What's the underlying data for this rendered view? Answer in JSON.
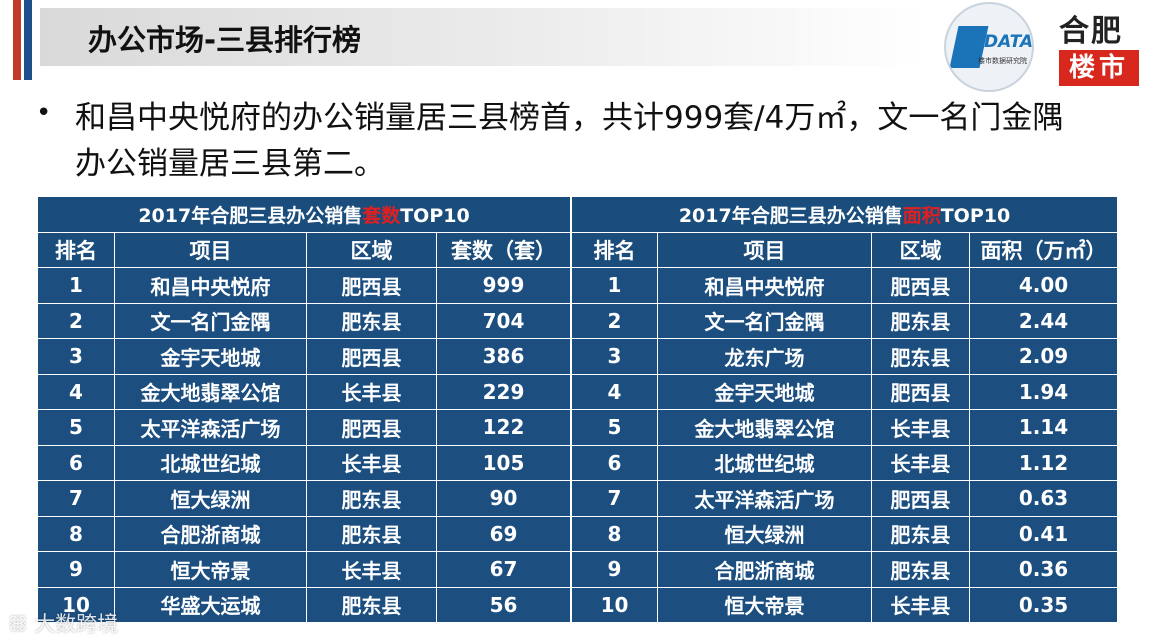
{
  "header": {
    "title": "办公市场-三县排行榜"
  },
  "logos": {
    "data_word": "DATA",
    "data_sub": "楼市数据研究院",
    "hefei_top": "合肥",
    "hefei_bottom": "楼市"
  },
  "summary": {
    "text": "和昌中央悦府的办公销量居三县榜首，共计999套/4万㎡，文一名门金隅办公销量居三县第二。"
  },
  "left_table": {
    "caption_prefix": "2017年合肥三县办公销售",
    "caption_highlight": "套数",
    "caption_suffix": "TOP10",
    "headers": [
      "排名",
      "项目",
      "区域",
      "套数（套）"
    ],
    "rows": [
      [
        "1",
        "和昌中央悦府",
        "肥西县",
        "999"
      ],
      [
        "2",
        "文一名门金隅",
        "肥东县",
        "704"
      ],
      [
        "3",
        "金宇天地城",
        "肥西县",
        "386"
      ],
      [
        "4",
        "金大地翡翠公馆",
        "长丰县",
        "229"
      ],
      [
        "5",
        "太平洋森活广场",
        "肥西县",
        "122"
      ],
      [
        "6",
        "北城世纪城",
        "长丰县",
        "105"
      ],
      [
        "7",
        "恒大绿洲",
        "肥东县",
        "90"
      ],
      [
        "8",
        "合肥浙商城",
        "肥东县",
        "69"
      ],
      [
        "9",
        "恒大帝景",
        "长丰县",
        "67"
      ],
      [
        "10",
        "华盛大运城",
        "肥东县",
        "56"
      ]
    ]
  },
  "right_table": {
    "caption_prefix": "2017年合肥三县办公销售",
    "caption_highlight": "面积",
    "caption_suffix": "TOP10",
    "headers": [
      "排名",
      "项目",
      "区域",
      "面积（万㎡）"
    ],
    "rows": [
      [
        "1",
        "和昌中央悦府",
        "肥西县",
        "4.00"
      ],
      [
        "2",
        "文一名门金隅",
        "肥东县",
        "2.44"
      ],
      [
        "3",
        "龙东广场",
        "肥东县",
        "2.09"
      ],
      [
        "4",
        "金宇天地城",
        "肥西县",
        "1.94"
      ],
      [
        "5",
        "金大地翡翠公馆",
        "长丰县",
        "1.14"
      ],
      [
        "6",
        "北城世纪城",
        "长丰县",
        "1.12"
      ],
      [
        "7",
        "太平洋森活广场",
        "肥西县",
        "0.63"
      ],
      [
        "8",
        "恒大绿洲",
        "肥东县",
        "0.41"
      ],
      [
        "9",
        "合肥浙商城",
        "肥东县",
        "0.36"
      ],
      [
        "10",
        "恒大帝景",
        "长丰县",
        "0.35"
      ]
    ]
  },
  "watermark": {
    "text": "大数跨境"
  },
  "colors": {
    "table_bg": "#1a4d7c",
    "highlight_red": "#e02020",
    "accent_red": "#c0392b",
    "accent_blue": "#1f4e8c"
  }
}
